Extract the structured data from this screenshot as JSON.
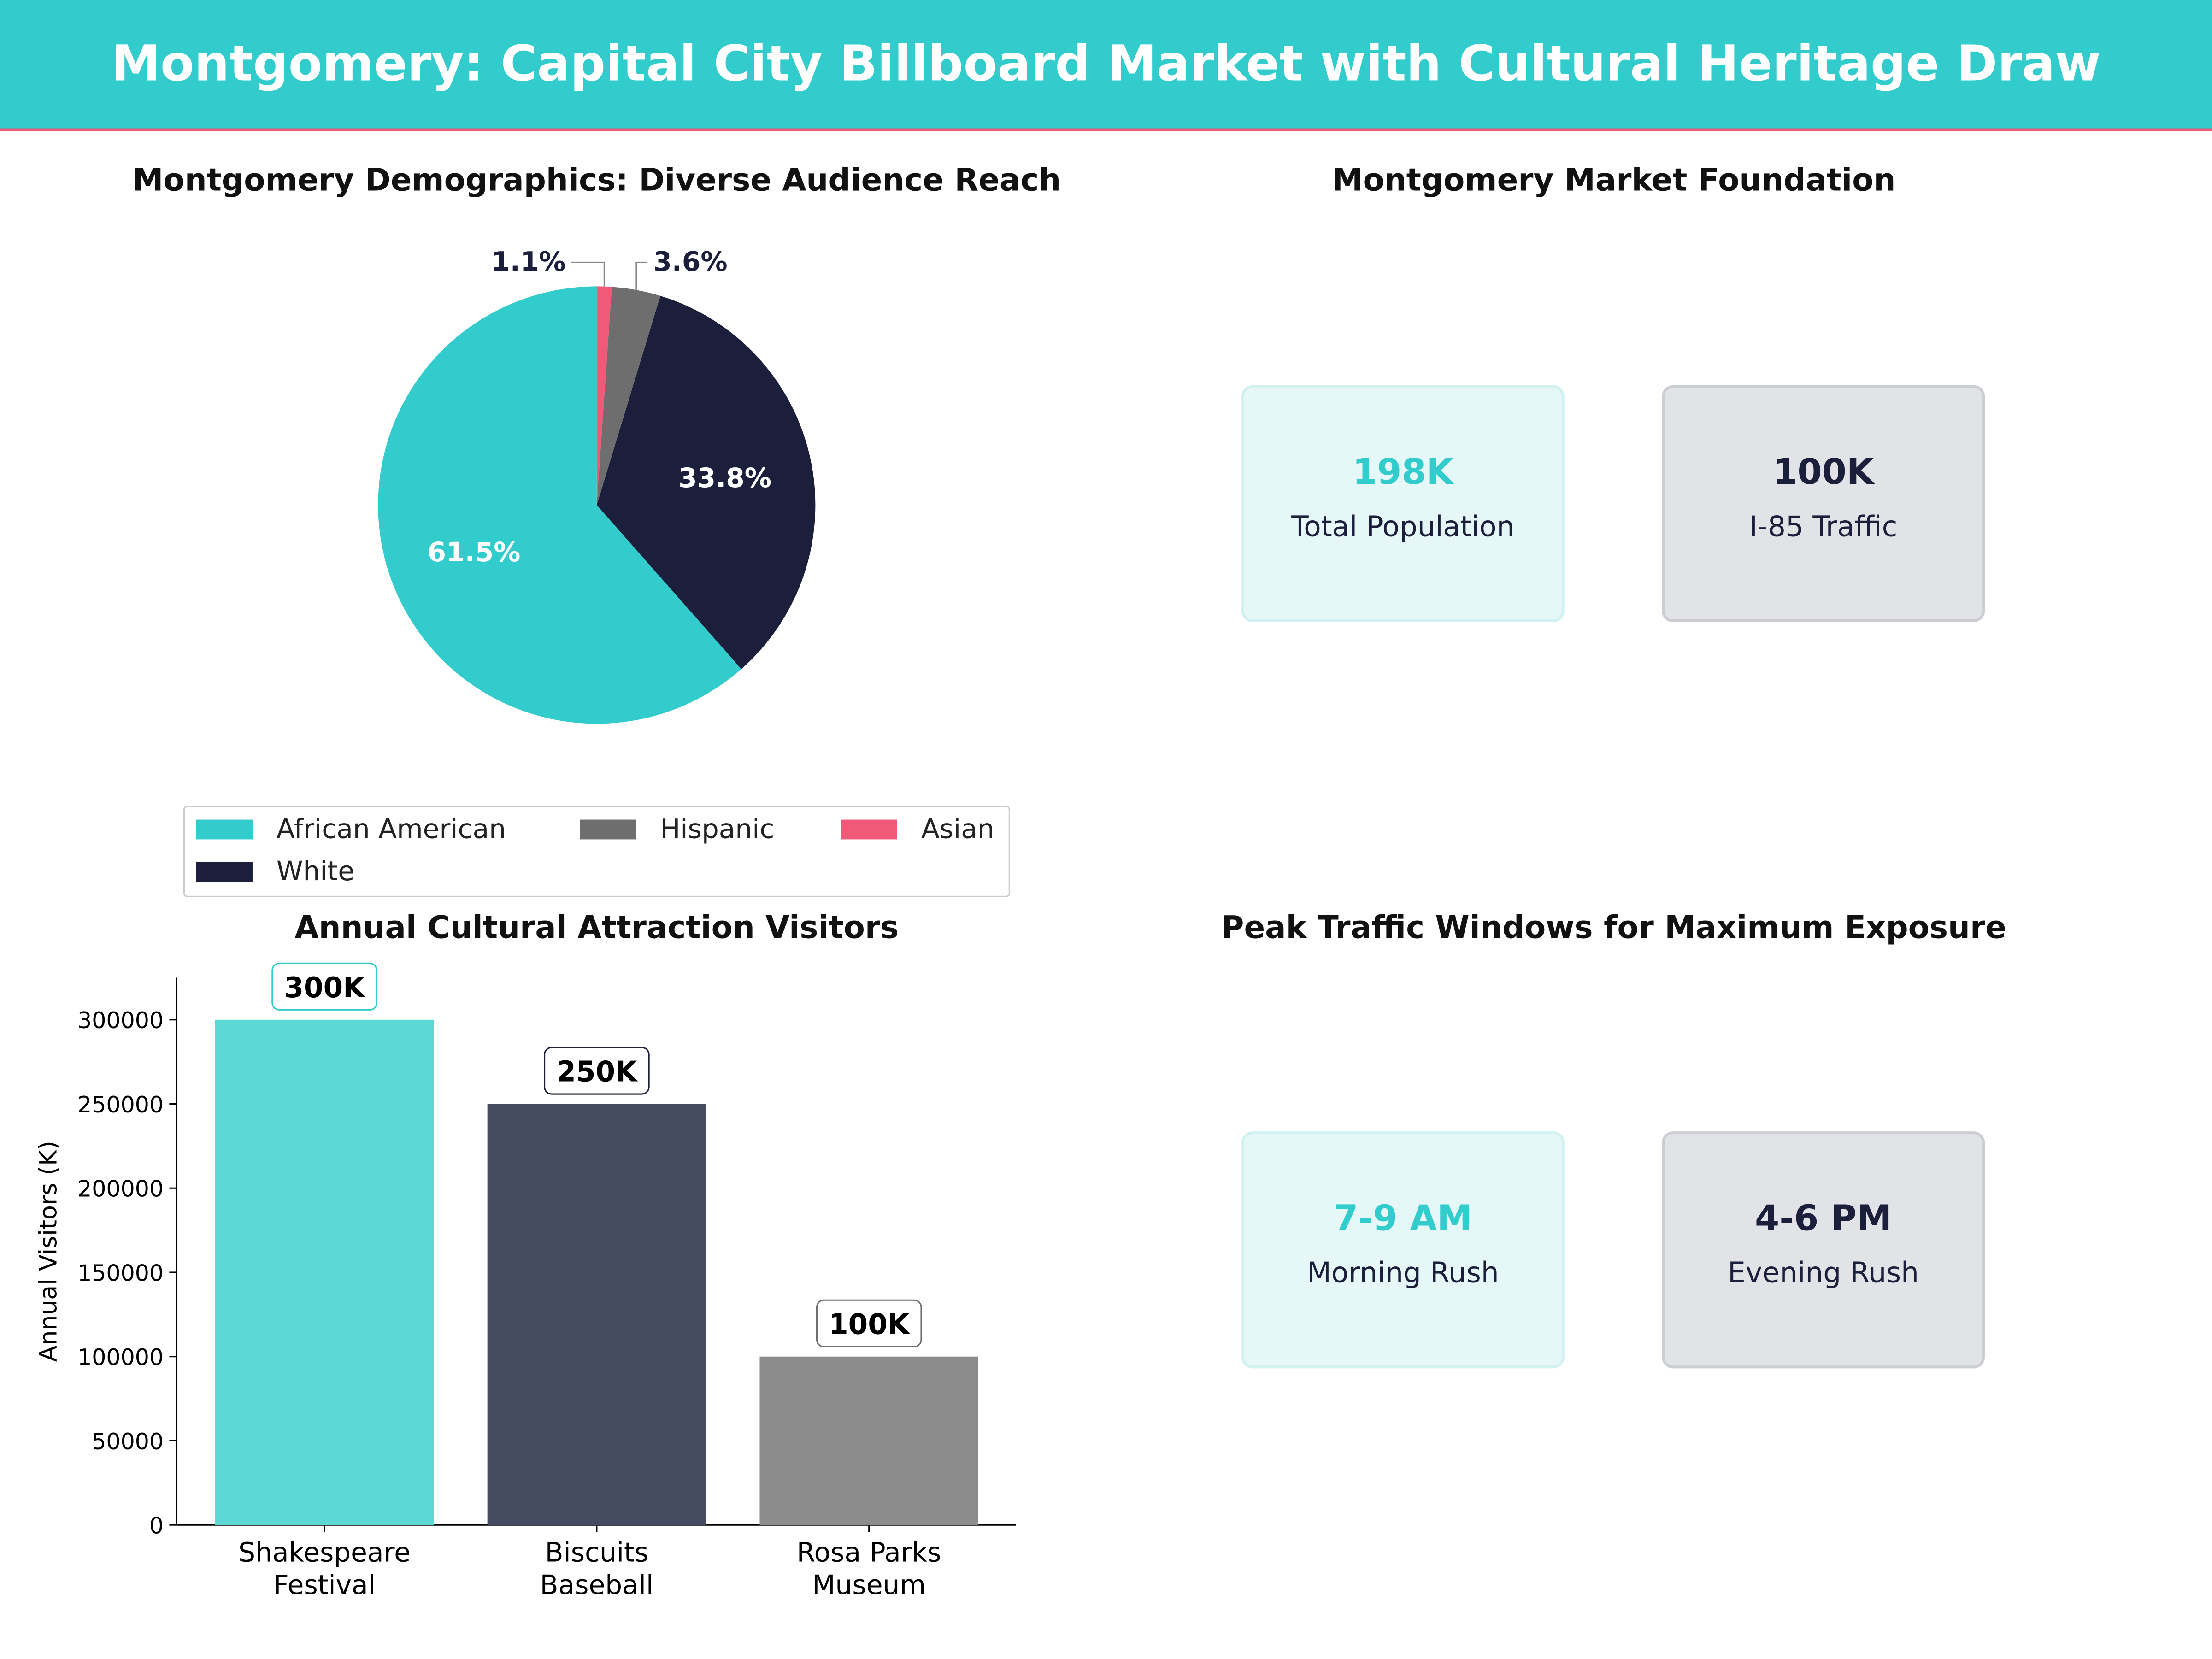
{
  "header": {
    "title": "Montgomery: Capital City Billboard Market with Cultural Heritage Draw"
  },
  "colors": {
    "header_bg": "#33CCCC",
    "accent_line": "#F05A78",
    "teal": "#33CCCC",
    "navy": "#1B1F3B",
    "gray": "#6E6E6E",
    "pink": "#F05A78"
  },
  "chart_data": [
    {
      "type": "pie",
      "title": "Montgomery Demographics: Diverse Audience Reach",
      "categories": [
        "African American",
        "White",
        "Hispanic",
        "Asian"
      ],
      "values": [
        61.5,
        33.8,
        3.6,
        1.1
      ],
      "labels": [
        "61.5%",
        "33.8%",
        "3.6%",
        "1.1%"
      ],
      "colors": [
        "#33CCCC",
        "#1B1F3B",
        "#6E6E6E",
        "#F05A78"
      ],
      "start_angle": 90,
      "legend": "bottom"
    },
    {
      "type": "bar",
      "title": "Annual Cultural Attraction Visitors",
      "categories": [
        "Shakespeare\nFestival",
        "Biscuits\nBaseball",
        "Rosa Parks\nMuseum"
      ],
      "values": [
        300000,
        250000,
        100000
      ],
      "data_labels": [
        "300K",
        "250K",
        "100K"
      ],
      "colors": [
        "#5ED8D5",
        "#454B60",
        "#8C8C8C"
      ],
      "label_border_colors": [
        "#33CCCC",
        "#1B1F3B",
        "#6E6E6E"
      ],
      "ylabel": "Annual Visitors (K)",
      "xlabel": "",
      "ylim": [
        0,
        325000
      ],
      "yticks": [
        0,
        50000,
        100000,
        150000,
        200000,
        250000,
        300000
      ],
      "grid": false
    }
  ],
  "market": {
    "title": "Montgomery Market Foundation",
    "cards": [
      {
        "value": "198K",
        "label": "Total Population"
      },
      {
        "value": "100K",
        "label": "I-85 Traffic"
      }
    ]
  },
  "traffic": {
    "title": "Peak Traffic Windows for Maximum Exposure",
    "cards": [
      {
        "value": "7-9 AM",
        "label": "Morning Rush"
      },
      {
        "value": "4-6 PM",
        "label": "Evening Rush"
      }
    ]
  }
}
